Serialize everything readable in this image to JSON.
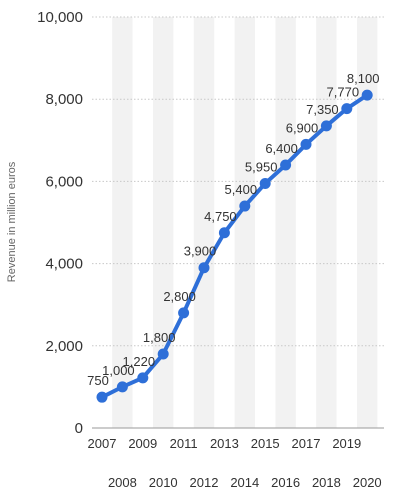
{
  "chart_data": {
    "type": "line",
    "ylabel": "Revenue in million euros",
    "xlabel": "",
    "ylim": [
      0,
      10000
    ],
    "y_ticks": [
      "0",
      "2,000",
      "4,000",
      "6,000",
      "8,000",
      "10,000"
    ],
    "x": [
      "2007",
      "2008",
      "2009",
      "2010",
      "2011",
      "2012",
      "2013",
      "2014",
      "2015",
      "2016",
      "2017",
      "2018",
      "2019",
      "2020"
    ],
    "series": [
      {
        "values": [
          750,
          1000,
          1220,
          1800,
          2800,
          3900,
          4750,
          5400,
          5950,
          6400,
          6900,
          7350,
          7770,
          8100
        ],
        "labels": [
          "750",
          "1,000",
          "1,220",
          "1,800",
          "2,800",
          "3,900",
          "4,750",
          "5,400",
          "5,950",
          "6,400",
          "6,900",
          "7,350",
          "7,770",
          "8,100"
        ]
      }
    ],
    "grid": true,
    "legend": "none",
    "colors": {
      "line": "#2e6fd8",
      "band": "#f2f2f2",
      "grid": "#c8c8c8"
    }
  }
}
